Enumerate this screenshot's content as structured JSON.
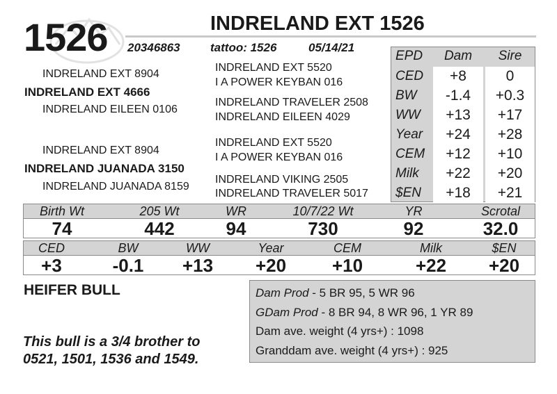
{
  "header": {
    "lot_number": "1526",
    "animal_name": "INDRELAND EXT 1526",
    "registration": "20346863",
    "tattoo": "tattoo: 1526",
    "birth_date": "05/14/21"
  },
  "pedigree": {
    "sire": "INDRELAND EXT 4666",
    "sire_sire": "INDRELAND EXT 8904",
    "sire_dam": "INDRELAND EILEEN 0106",
    "sire_sire_sire": "INDRELAND EXT 5520",
    "sire_sire_dam": "I A POWER KEYBAN 016",
    "sire_dam_sire": "INDRELAND TRAVELER 2508",
    "sire_dam_dam": "INDRELAND EILEEN 4029",
    "dam": "INDRELAND JUANADA 3150",
    "dam_sire": "INDRELAND EXT 8904",
    "dam_dam": "INDRELAND JUANADA 8159",
    "dam_sire_sire": "INDRELAND EXT 5520",
    "dam_sire_dam": "I A POWER KEYBAN 016",
    "dam_dam_sire": "INDRELAND VIKING 2505",
    "dam_dam_dam": "INDRELAND TRAVELER 5017"
  },
  "epd_table": {
    "headers": [
      "EPD",
      "Dam",
      "Sire"
    ],
    "rows": [
      {
        "label": "CED",
        "dam": "+8",
        "sire": "0"
      },
      {
        "label": "BW",
        "dam": "-1.4",
        "sire": "+0.3"
      },
      {
        "label": "WW",
        "dam": "+13",
        "sire": "+17"
      },
      {
        "label": "Year",
        "dam": "+24",
        "sire": "+28"
      },
      {
        "label": "CEM",
        "dam": "+12",
        "sire": "+10"
      },
      {
        "label": "Milk",
        "dam": "+22",
        "sire": "+20"
      },
      {
        "label": "$EN",
        "dam": "+18",
        "sire": "+21"
      }
    ]
  },
  "performance": {
    "headers": [
      "Birth Wt",
      "205 Wt",
      "WR",
      "10/7/22 Wt",
      "YR",
      "Scrotal"
    ],
    "values": [
      "74",
      "442",
      "94",
      "730",
      "92",
      "32.0"
    ]
  },
  "calf_epds": {
    "headers": [
      "CED",
      "BW",
      "WW",
      "Year",
      "CEM",
      "Milk",
      "$EN"
    ],
    "values": [
      "+3",
      "-0.1",
      "+13",
      "+20",
      "+10",
      "+22",
      "+20"
    ]
  },
  "category": "HEIFER BULL",
  "note": "This bull is a 3/4 brother to 0521, 1501, 1536 and 1549.",
  "production": {
    "dam_prod_label": "Dam Prod",
    "dam_prod_value": " - 5 BR 95, 5 WR 96",
    "gdam_prod_label": "GDam Prod",
    "gdam_prod_value": " - 8 BR 94, 8 WR 96, 1 YR 89",
    "dam_ave_weight": "Dam ave. weight (4 yrs+) : 1098",
    "granddam_ave_weight": "Granddam ave. weight (4 yrs+) : 925"
  },
  "colors": {
    "panel_gray": "#d4d4d4",
    "border_gray": "#8a8a8a",
    "text": "#1a1a1a"
  }
}
